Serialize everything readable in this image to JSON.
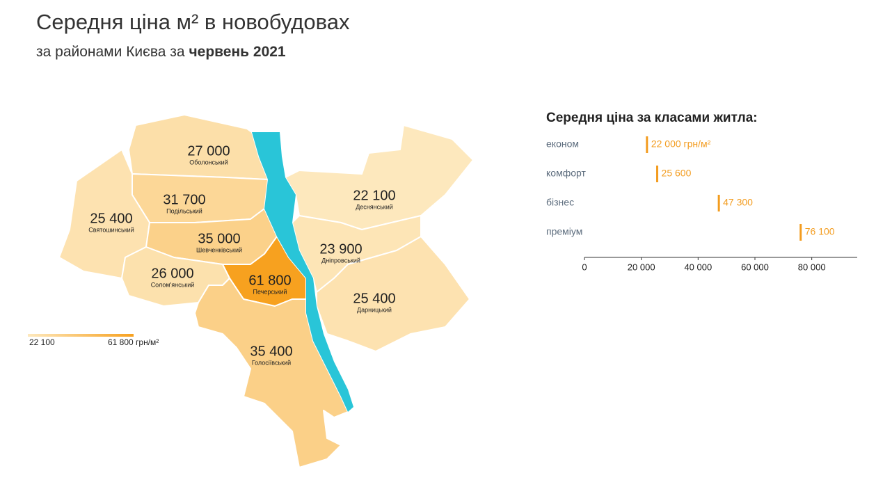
{
  "header": {
    "title": "Середня ціна м² в новобудовах",
    "subtitle": "за районами Києва за",
    "subtitle_period": "червень 2021"
  },
  "map": {
    "districts": [
      {
        "name": "Оболонський",
        "value": 27000,
        "value_label": "27 000"
      },
      {
        "name": "Подільський",
        "value": 31700,
        "value_label": "31 700"
      },
      {
        "name": "Святошинський",
        "value": 25400,
        "value_label": "25 400"
      },
      {
        "name": "Шевченківський",
        "value": 35000,
        "value_label": "35 000"
      },
      {
        "name": "Солом'янський",
        "value": 26000,
        "value_label": "26 000"
      },
      {
        "name": "Печерський",
        "value": 61800,
        "value_label": "61 800"
      },
      {
        "name": "Голосіївський",
        "value": 35400,
        "value_label": "35 400"
      },
      {
        "name": "Деснянський",
        "value": 22100,
        "value_label": "22 100"
      },
      {
        "name": "Дніпровський",
        "value": 23900,
        "value_label": "23 900"
      },
      {
        "name": "Дарницький",
        "value": 25400,
        "value_label": "25 400"
      }
    ],
    "legend": {
      "min": 22100,
      "min_label": "22 100",
      "max": 61800,
      "max_label": "61 800 грн/м²",
      "color_low": "#fde8bd",
      "color_high": "#f7a11f"
    }
  },
  "chart_data": {
    "type": "bar",
    "title": "Середня ціна за класами житла:",
    "categories": [
      "економ",
      "комфорт",
      "бізнес",
      "преміум"
    ],
    "values": [
      22000,
      25600,
      47300,
      76100
    ],
    "value_labels": [
      "22 000 грн/м²",
      "25 600",
      "47 300",
      "76 100"
    ],
    "color": "#f39c1f",
    "xlim": [
      0,
      96000
    ],
    "xticks": [
      0,
      {
        "value": 20000,
        "label": "20 000"
      },
      {
        "value": 40000,
        "label": "40 000"
      },
      {
        "value": 60000,
        "label": "60 000"
      },
      {
        "value": 80000,
        "label": "80 000"
      }
    ]
  }
}
